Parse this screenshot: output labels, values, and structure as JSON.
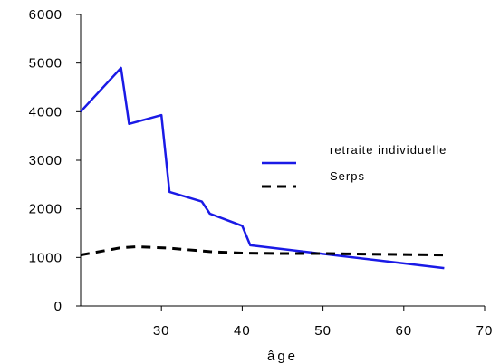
{
  "chart_data": {
    "type": "line",
    "title": "",
    "xlabel": "âge",
    "ylabel": "",
    "xlim": [
      20,
      70
    ],
    "ylim": [
      0,
      6000
    ],
    "x_ticks": [
      30,
      40,
      50,
      60,
      70
    ],
    "y_ticks": [
      0,
      1000,
      2000,
      3000,
      4000,
      5000,
      6000
    ],
    "grid": false,
    "legend": {
      "placement": "center-right"
    },
    "series": [
      {
        "name": "retraite individuelle",
        "style": "solid",
        "color": "#1a1ae6",
        "x": [
          20,
          25,
          26,
          30,
          31,
          35,
          36,
          40,
          41,
          65
        ],
        "y": [
          4000,
          4900,
          3750,
          3930,
          2350,
          2150,
          1900,
          1650,
          1250,
          780
        ]
      },
      {
        "name": "Serps",
        "style": "dashed",
        "color": "#000000",
        "x": [
          20,
          25,
          27,
          31,
          36,
          40,
          45,
          50,
          55,
          60,
          65
        ],
        "y": [
          1050,
          1200,
          1220,
          1190,
          1120,
          1090,
          1080,
          1080,
          1070,
          1060,
          1050
        ]
      }
    ]
  }
}
